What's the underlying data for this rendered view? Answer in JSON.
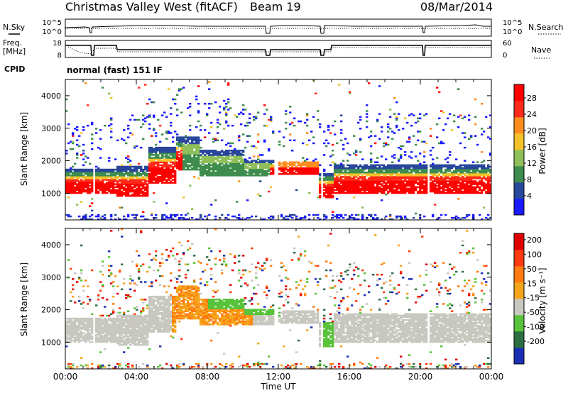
{
  "header": {
    "station": "Christmas Valley West (fitACF)",
    "beam": "Beam 19",
    "date": "08/Mar/2014"
  },
  "noise_panel": {
    "left_label": "N.Sky",
    "right_label": "N.Search",
    "left_ticks": [
      "10^5",
      "10^0"
    ],
    "right_ticks": [
      "10^5",
      "10^0"
    ]
  },
  "freq_panel": {
    "left_label_1": "Freq.",
    "left_label_2": "[MHz]",
    "right_label": "Nave",
    "left_ticks": [
      "18",
      "8"
    ],
    "right_ticks": [
      "60",
      "0"
    ]
  },
  "cpid": {
    "label": "CPID",
    "value": "normal (fast) 151 IF"
  },
  "chart_data": [
    {
      "type": "heatmap",
      "name": "power",
      "ylabel": "Slant Range [km]",
      "yticks": [
        "4000",
        "3000",
        "2000",
        "1000"
      ],
      "ylim": [
        180,
        4500
      ],
      "xlim_hours": [
        0,
        24
      ],
      "colorbar": {
        "label": "Power [dB]",
        "ticks": [
          "28",
          "24",
          "20",
          "16",
          "12",
          "8",
          "4"
        ],
        "colors": [
          "#1a1aff",
          "#28479a",
          "#3e8d4e",
          "#8fbf5a",
          "#f4c22a",
          "#ff8d1e",
          "#ff2a1a",
          "#ff0000"
        ]
      }
    },
    {
      "type": "heatmap",
      "name": "velocity",
      "ylabel": "Slant Range [km]",
      "yticks": [
        "4000",
        "3000",
        "2000",
        "1000"
      ],
      "ylim": [
        180,
        4500
      ],
      "xlim_hours": [
        0,
        24
      ],
      "colorbar": {
        "label": "Velocity [m s⁻¹]",
        "ticks": [
          "200",
          "100",
          "50",
          "15",
          "-15",
          "-50",
          "-100",
          "-200"
        ],
        "colors": [
          "#1b2fb5",
          "#2c6e42",
          "#58c23a",
          "#c8c8c0",
          "#f5a51c",
          "#ff7a10",
          "#ff3a10",
          "#e00000"
        ]
      }
    }
  ],
  "x_axis": {
    "label": "Time UT",
    "ticks": [
      "00:00",
      "04:00",
      "08:00",
      "12:00",
      "16:00",
      "20:00",
      "00:00"
    ]
  },
  "colors": {
    "ground_scatter": "#c0c0b8"
  }
}
